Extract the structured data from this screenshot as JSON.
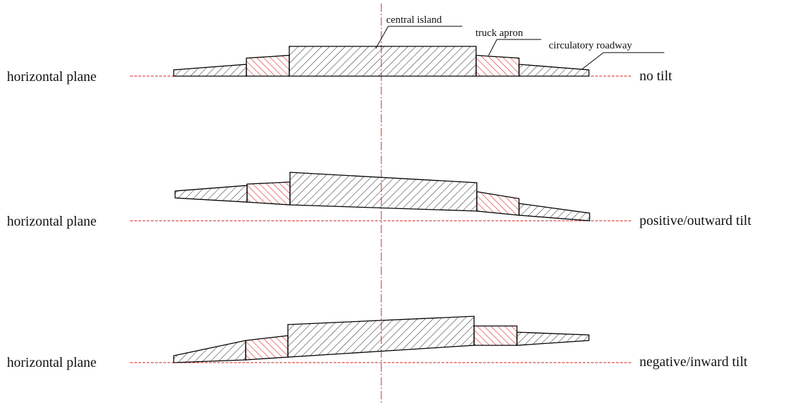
{
  "colors": {
    "outline": "#000000",
    "hatch_black": "#333333",
    "hatch_red": "#e03030",
    "guide_red": "#d62020",
    "background": "#ffffff"
  },
  "callouts": {
    "central_island": "central island",
    "truck_apron": "truck apron",
    "circulatory_roadway": "circulatory roadway"
  },
  "rows": [
    {
      "left_label": "horizontal plane",
      "right_label": "no tilt"
    },
    {
      "left_label": "horizontal plane",
      "right_label": "positive/outward tilt"
    },
    {
      "left_label": "horizontal plane",
      "right_label": "negative/inward tilt"
    }
  ]
}
